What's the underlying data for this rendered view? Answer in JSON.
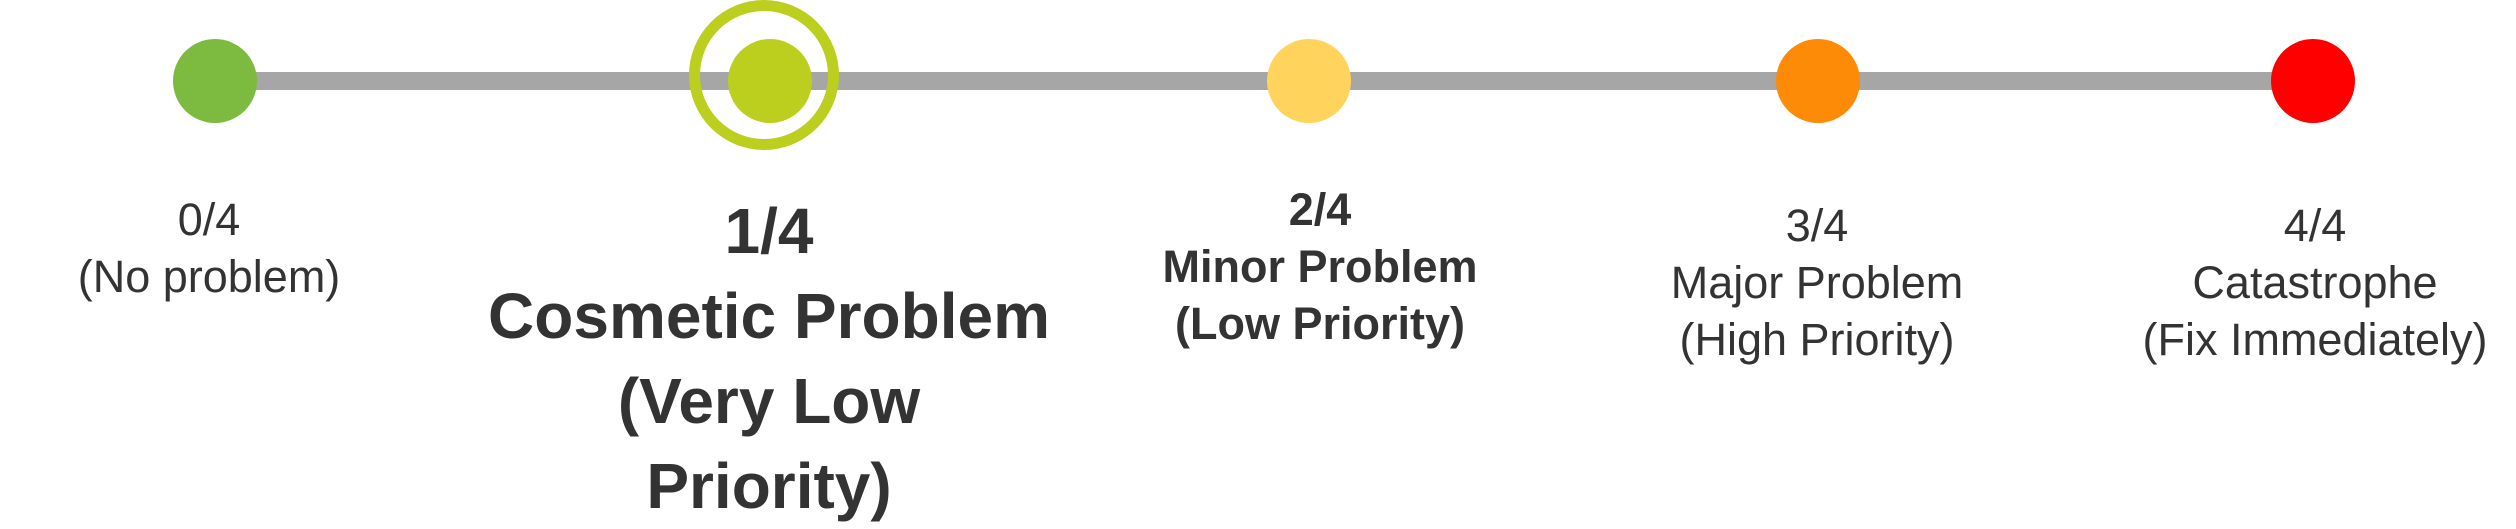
{
  "severity_scale": {
    "selected_index": 1,
    "levels": [
      {
        "score": "0/4",
        "label": "(No problem)",
        "color": "#7cbb3f"
      },
      {
        "score": "1/4",
        "label": "Cosmetic Problem",
        "priority_line1": "(Very Low",
        "priority_line2": "Priority)",
        "color": "#bccf1e"
      },
      {
        "score": "2/4",
        "label": "Minor Problem",
        "priority": "(Low Priority)",
        "color": "#ffd35c"
      },
      {
        "score": "3/4",
        "label": "Major Problem",
        "priority": "(High Priority)",
        "color": "#fd8b08"
      },
      {
        "score": "4/4",
        "label": "Catastrophe",
        "priority": "(Fix Immediately)",
        "color": "#fe0000"
      }
    ],
    "track_color": "#a6a6a6",
    "selection_ring_color": "#bccf1e"
  }
}
